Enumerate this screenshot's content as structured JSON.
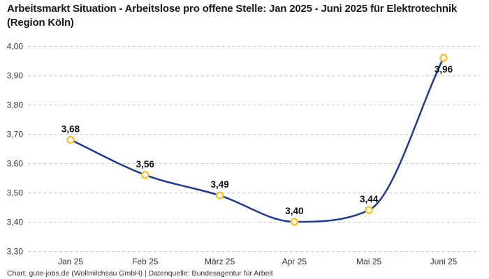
{
  "header": {
    "title": "Arbeitsmarkt Situation - Arbeitslose pro offene Stelle: Jan 2025 - Juni 2025 für Elektrotechnik (Region Köln)"
  },
  "footer": {
    "credit": "Chart: gute-jobs.de (Wollmilchsau GmbH) | Datenquelle: Bundesagentur für Arbeit"
  },
  "chart_data": {
    "type": "line",
    "title": "Arbeitsmarkt Situation - Arbeitslose pro offene Stelle: Jan 2025 - Juni 2025 für Elektrotechnik (Region Köln)",
    "categories": [
      "Jan 25",
      "Feb 25",
      "März 25",
      "Apr 25",
      "Mai 25",
      "Juni 25"
    ],
    "values": [
      3.68,
      3.56,
      3.49,
      3.4,
      3.44,
      3.96
    ],
    "point_labels": [
      "3,68",
      "3,56",
      "3,49",
      "3,40",
      "3,44",
      "3,96"
    ],
    "point_label_position": [
      "above",
      "above",
      "above",
      "above",
      "above",
      "below"
    ],
    "xlabel": "",
    "ylabel": "",
    "ylim": [
      3.3,
      4.0
    ],
    "ytick_step": 0.1,
    "ytick_labels": [
      "3,30",
      "3,40",
      "3,50",
      "3,60",
      "3,70",
      "3,80",
      "3,90",
      "4,00"
    ],
    "grid": "horizontal-dashed",
    "legend": "none",
    "colors": {
      "line": "#1e3a93",
      "marker_stroke": "#f7c331",
      "marker_fill": "#ffffff",
      "grid": "#c9c9c9",
      "axis_text": "#333333",
      "point_label_text": "#111111"
    }
  }
}
